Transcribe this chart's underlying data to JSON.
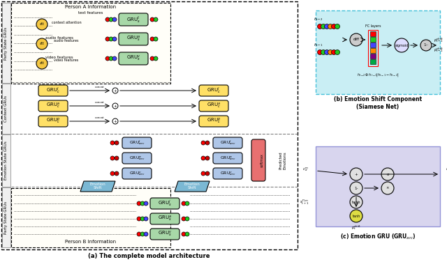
{
  "title_a": "(a) The complete model architecture",
  "title_b": "(b) Emotion Shift Component\n(Siamese Net)",
  "title_c": "(c) Emotion GRU (GRU",
  "title_c_sub": "arc",
  "title_c_end": ")",
  "fig_bg": "#ffffff",
  "left_panel_bg": "#ffffff",
  "party_state_gru_label": "Party State GRUs",
  "context_gru_label": "Context GRUs",
  "emotion_state_gru_label": "Emotion State GRUs",
  "party_state_gru_b_label": "Party State GRUs",
  "person_a_label": "Person A Information",
  "person_b_label": "Person B Information",
  "gru_text_color_green": "#4daf4a",
  "gru_text_color_yellow": "#ffe066",
  "gru_fill_green": "#a8d8a8",
  "gru_fill_yellow": "#ffe066",
  "gru_fill_blue": "#aec6e8",
  "gru_fill_purple": "#b8b4d8",
  "emotion_shift_fill": "#7bb8d4",
  "softmax_fill": "#e87070",
  "cyan_bg": "#b2e8f0",
  "lavender_bg": "#c8c4e8"
}
